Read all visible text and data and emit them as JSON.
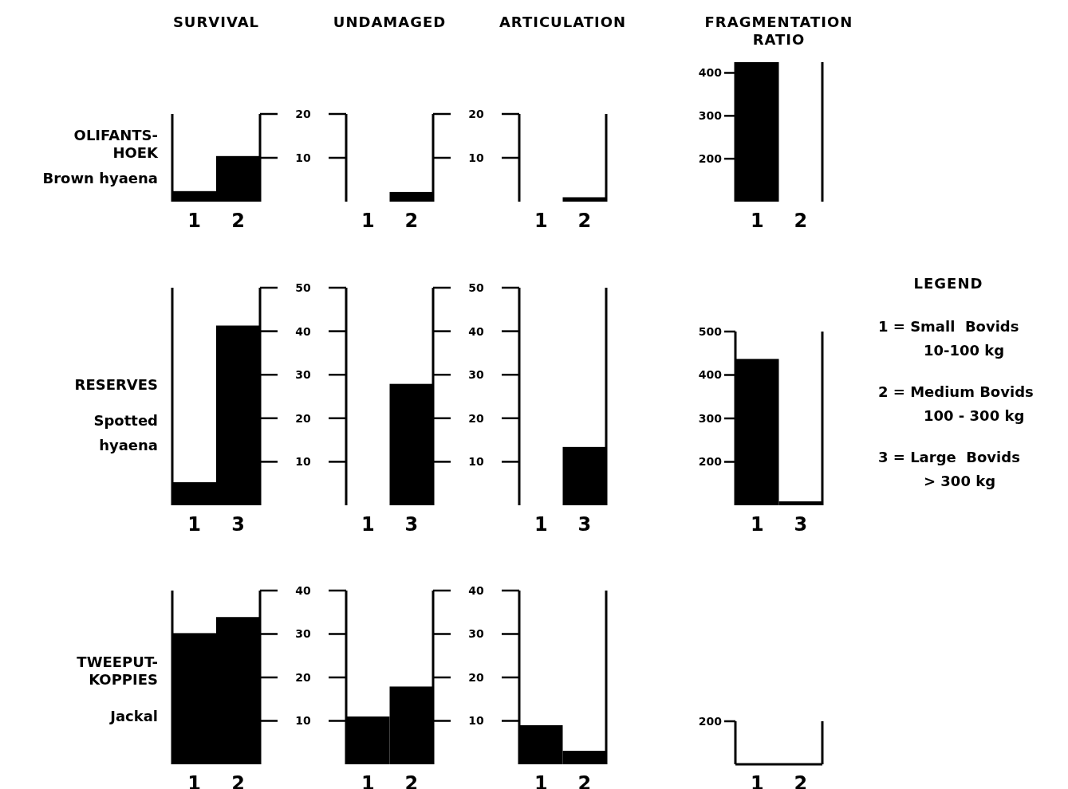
{
  "chart_data": [
    {
      "type": "bar",
      "title": "SURVIVAL",
      "ylabel": "OLIFANTS-\nHOEK",
      "annotations": [
        "Brown hyaena"
      ],
      "categories": [
        "1",
        "2"
      ],
      "values": [
        2.4,
        10.4
      ],
      "color": "#000000",
      "ylim": [
        0,
        20
      ],
      "yticks": [
        10,
        20
      ]
    },
    {
      "type": "bar",
      "title": "UNDAMAGED",
      "categories": [
        "1",
        "2"
      ],
      "values": [
        0,
        2.2
      ],
      "color": "#000000",
      "ylim": [
        0,
        20
      ],
      "yticks": [
        10,
        20
      ]
    },
    {
      "type": "bar",
      "title": "ARTICULATION",
      "categories": [
        "1",
        "2"
      ],
      "values": [
        0,
        1
      ],
      "color": "#000000",
      "ylim": [
        0,
        20
      ],
      "yticks": [
        10,
        20
      ],
      "tick_labels": "x"
    },
    {
      "type": "bar",
      "title": "FRAGMENTATION\nRATIO",
      "categories": [
        "1",
        "2"
      ],
      "values": [
        425,
        100
      ],
      "color": "#000000",
      "ylim": [
        100,
        425
      ],
      "yticks": [
        200,
        300,
        400
      ]
    },
    {
      "type": "bar",
      "ylabel": "RESERVES",
      "annotations": [
        "Spotted\nhyaena"
      ],
      "categories": [
        "1",
        "3"
      ],
      "values": [
        5.3,
        41.3
      ],
      "color": "#000000",
      "ylim": [
        0,
        50
      ],
      "yticks": [
        10,
        20,
        30,
        40,
        50
      ]
    },
    {
      "type": "bar",
      "categories": [
        "1",
        "3"
      ],
      "values": [
        0,
        27.9
      ],
      "color": "#000000",
      "ylim": [
        0,
        50
      ],
      "yticks": [
        10,
        20,
        30,
        40,
        50
      ]
    },
    {
      "type": "bar",
      "categories": [
        "1",
        "3"
      ],
      "values": [
        0,
        13.4
      ],
      "color": "#000000",
      "ylim": [
        0,
        50
      ],
      "yticks": [
        10,
        20,
        30,
        40,
        50
      ],
      "tick_labels": "x"
    },
    {
      "type": "bar",
      "categories": [
        "1",
        "3"
      ],
      "values": [
        437,
        109
      ],
      "color": "#000000",
      "ylim": [
        100,
        500
      ],
      "yticks": [
        200,
        300,
        400,
        500
      ]
    },
    {
      "type": "bar",
      "ylabel": "TWEEPUT-\nKOPPIES",
      "annotations": [
        "Jackal"
      ],
      "categories": [
        "1",
        "2"
      ],
      "values": [
        30.2,
        33.9
      ],
      "color": "#000000",
      "ylim": [
        0,
        40
      ],
      "yticks": [
        10,
        20,
        30,
        40
      ]
    },
    {
      "type": "bar",
      "categories": [
        "1",
        "2"
      ],
      "values": [
        11.0,
        17.9
      ],
      "color": "#000000",
      "ylim": [
        0,
        40
      ],
      "yticks": [
        10,
        20,
        30,
        40
      ]
    },
    {
      "type": "bar",
      "categories": [
        "1",
        "2"
      ],
      "values": [
        9.0,
        3.1
      ],
      "color": "#000000",
      "ylim": [
        0,
        40
      ],
      "yticks": [
        10,
        20,
        30,
        40
      ],
      "tick_labels": "x"
    },
    {
      "type": "other",
      "categories": [
        "1",
        "2"
      ],
      "annotations": [
        "200"
      ]
    },
    {
      "type": "other",
      "title": "LEGEND",
      "annotations": [
        "1 = Small  Bovids\n10-100 kg",
        "2 = Medium Bovids\n100 - 300 kg",
        "3 = Large  Bovids\n> 300 kg"
      ]
    }
  ]
}
